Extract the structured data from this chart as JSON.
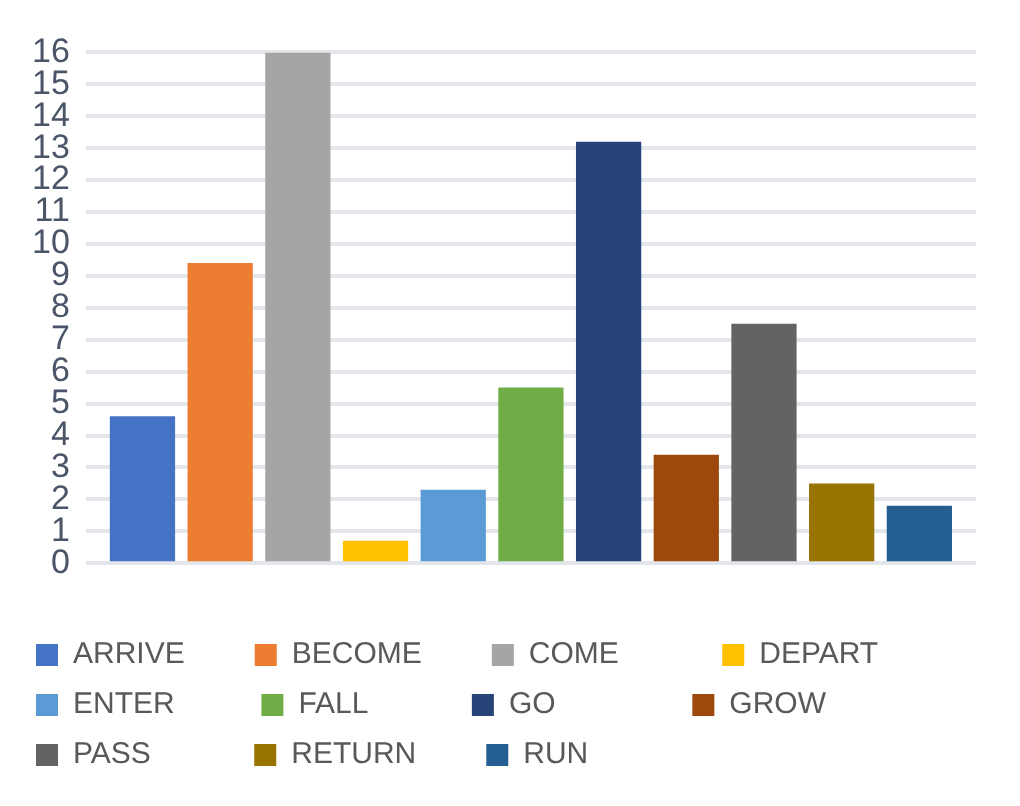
{
  "chart_data": {
    "type": "bar",
    "categories": [
      null
    ],
    "series": [
      {
        "name": "ARRIVE",
        "color": "#4472c4",
        "values": [
          4.6
        ]
      },
      {
        "name": "BECOME",
        "color": "#ed7d31",
        "values": [
          9.4
        ]
      },
      {
        "name": "COME",
        "color": "#a5a5a5",
        "values": [
          16
        ]
      },
      {
        "name": "DEPART",
        "color": "#ffc000",
        "values": [
          0.7
        ]
      },
      {
        "name": "ENTER",
        "color": "#5b9bd5",
        "values": [
          2.3
        ]
      },
      {
        "name": "FALL",
        "color": "#70ad47",
        "values": [
          5.5
        ]
      },
      {
        "name": "GO",
        "color": "#264478",
        "values": [
          13.2
        ]
      },
      {
        "name": "GROW",
        "color": "#9e480e",
        "values": [
          3.4
        ]
      },
      {
        "name": "PASS",
        "color": "#636363",
        "values": [
          7.5
        ]
      },
      {
        "name": "RETURN",
        "color": "#997300",
        "values": [
          2.5
        ]
      },
      {
        "name": "RUN",
        "color": "#255e91",
        "values": [
          1.8
        ]
      }
    ],
    "ylim": [
      0,
      16
    ],
    "yticks": [
      0,
      1,
      2,
      3,
      4,
      5,
      6,
      7,
      8,
      9,
      10,
      11,
      12,
      13,
      14,
      15,
      16
    ],
    "grid": "y",
    "legend": "bottom"
  }
}
